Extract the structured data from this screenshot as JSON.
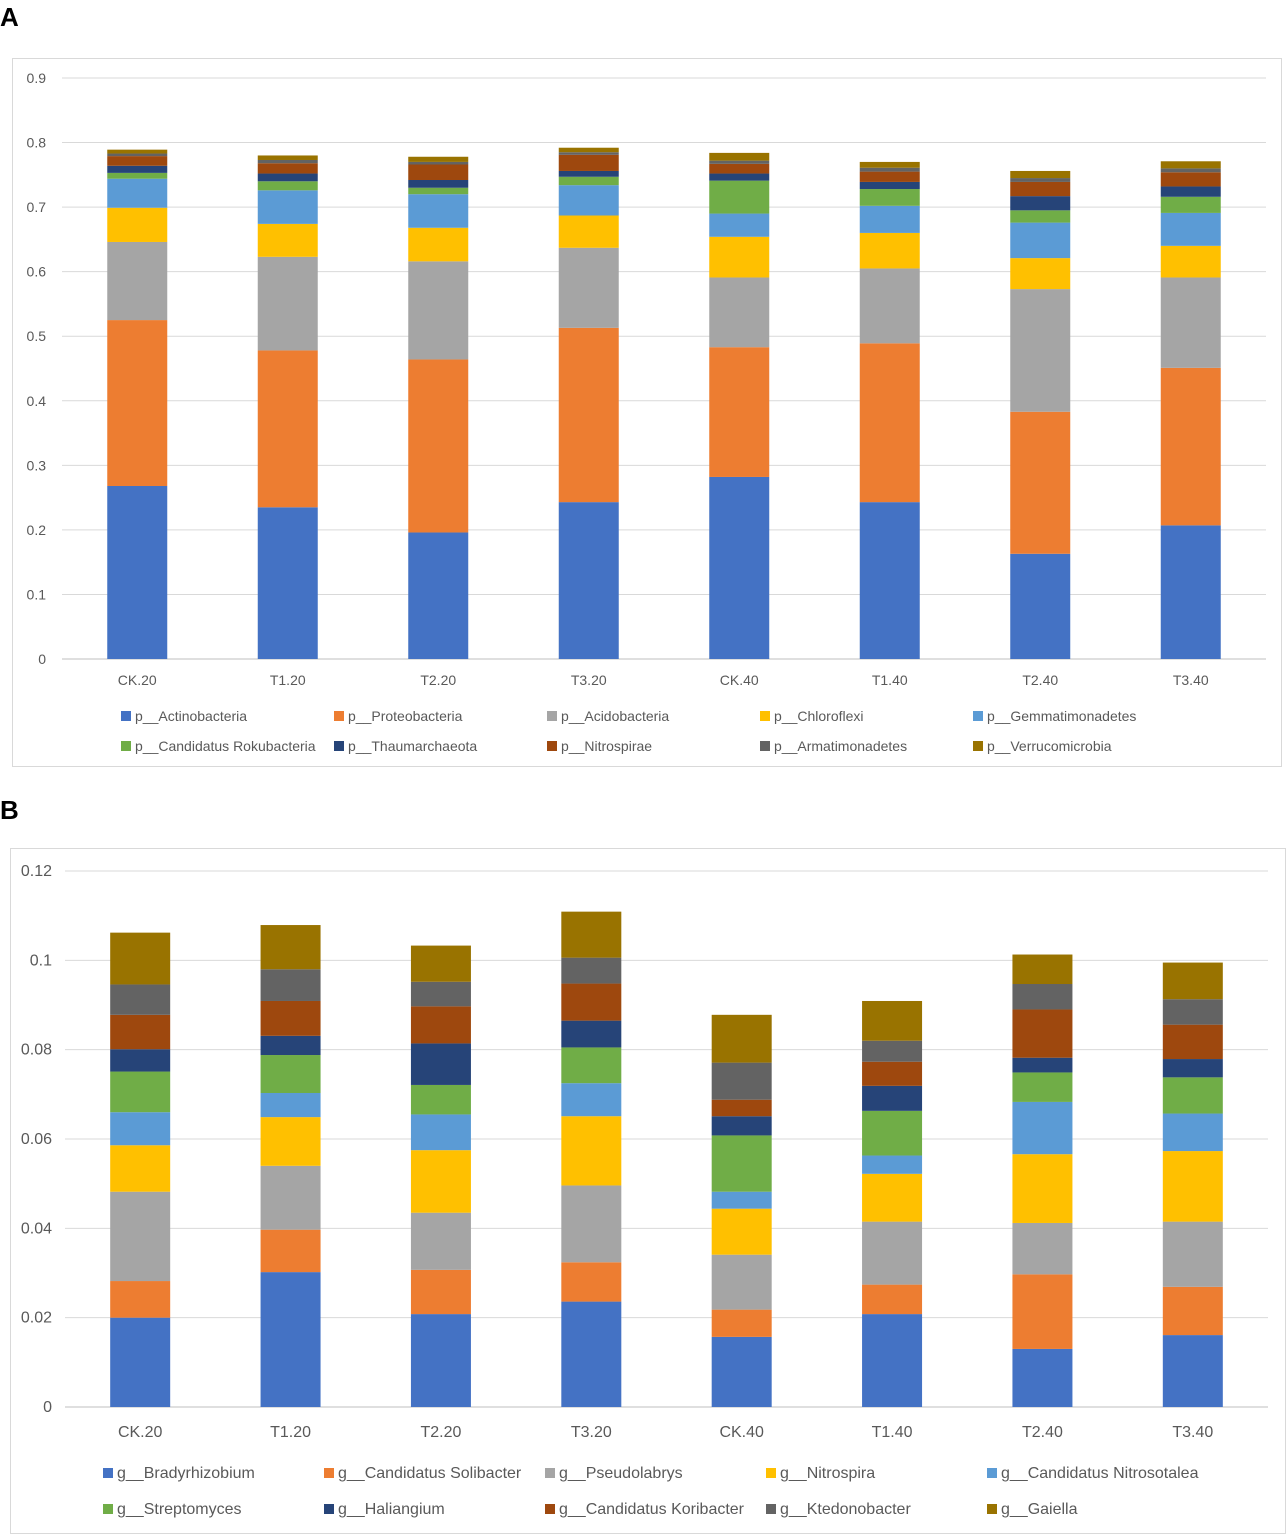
{
  "panels": [
    {
      "label": "A"
    },
    {
      "label": "B"
    }
  ],
  "chart_data": [
    {
      "type": "bar",
      "stacked": true,
      "panel": "A",
      "categories": [
        "CK.20",
        "T1.20",
        "T2.20",
        "T3.20",
        "CK.40",
        "T1.40",
        "T2.40",
        "T3.40"
      ],
      "ylim": [
        0,
        0.9
      ],
      "yticks": [
        0,
        0.1,
        0.2,
        0.3,
        0.4,
        0.5,
        0.6,
        0.7,
        0.8,
        0.9
      ],
      "ytick_labels": [
        "0",
        "0.1",
        "0.2",
        "0.3",
        "0.4",
        "0.5",
        "0.6",
        "0.7",
        "0.8",
        "0.9"
      ],
      "grid": true,
      "legend_position": "bottom",
      "series": [
        {
          "name": "p__Actinobacteria",
          "color": "#4472c4",
          "values": [
            0.268,
            0.235,
            0.196,
            0.243,
            0.282,
            0.243,
            0.163,
            0.207
          ]
        },
        {
          "name": "p__Proteobacteria",
          "color": "#ed7d31",
          "values": [
            0.257,
            0.243,
            0.268,
            0.27,
            0.201,
            0.246,
            0.22,
            0.244
          ]
        },
        {
          "name": "p__Acidobacteria",
          "color": "#a5a5a5",
          "values": [
            0.121,
            0.145,
            0.152,
            0.124,
            0.108,
            0.116,
            0.19,
            0.14
          ]
        },
        {
          "name": "p__Chloroflexi",
          "color": "#ffc000",
          "values": [
            0.053,
            0.051,
            0.052,
            0.05,
            0.063,
            0.055,
            0.048,
            0.049
          ]
        },
        {
          "name": "p__Gemmatimonadetes",
          "color": "#5b9bd5",
          "values": [
            0.045,
            0.052,
            0.052,
            0.047,
            0.036,
            0.042,
            0.055,
            0.051
          ]
        },
        {
          "name": "p__Candidatus Rokubacteria",
          "color": "#70ad47",
          "values": [
            0.009,
            0.014,
            0.01,
            0.013,
            0.051,
            0.026,
            0.019,
            0.025
          ]
        },
        {
          "name": "p__Thaumarchaeota",
          "color": "#264478",
          "values": [
            0.011,
            0.012,
            0.012,
            0.009,
            0.011,
            0.011,
            0.022,
            0.016
          ]
        },
        {
          "name": "p__Nitrospirae",
          "color": "#9e480e",
          "values": [
            0.015,
            0.016,
            0.024,
            0.025,
            0.015,
            0.016,
            0.022,
            0.022
          ]
        },
        {
          "name": "p__Armatimonadetes",
          "color": "#636363",
          "values": [
            0.004,
            0.005,
            0.004,
            0.004,
            0.005,
            0.006,
            0.006,
            0.006
          ]
        },
        {
          "name": "p__Verrucomicrobia",
          "color": "#997300",
          "values": [
            0.006,
            0.007,
            0.008,
            0.007,
            0.012,
            0.009,
            0.011,
            0.011
          ]
        }
      ]
    },
    {
      "type": "bar",
      "stacked": true,
      "panel": "B",
      "categories": [
        "CK.20",
        "T1.20",
        "T2.20",
        "T3.20",
        "CK.40",
        "T1.40",
        "T2.40",
        "T3.40"
      ],
      "ylim": [
        0,
        0.12
      ],
      "yticks": [
        0,
        0.02,
        0.04,
        0.06,
        0.08,
        0.1,
        0.12
      ],
      "ytick_labels": [
        "0",
        "0.02",
        "0.04",
        "0.06",
        "0.08",
        "0.1",
        "0.12"
      ],
      "grid": true,
      "legend_position": "bottom",
      "series": [
        {
          "name": "g__Bradyrhizobium",
          "color": "#4472c4",
          "values": [
            0.02,
            0.0302,
            0.0208,
            0.0236,
            0.0157,
            0.0208,
            0.013,
            0.0161
          ]
        },
        {
          "name": "g__Candidatus Solibacter",
          "color": "#ed7d31",
          "values": [
            0.0082,
            0.0095,
            0.0099,
            0.0088,
            0.0061,
            0.0066,
            0.0167,
            0.0108
          ]
        },
        {
          "name": "g__Pseudolabrys",
          "color": "#a5a5a5",
          "values": [
            0.02,
            0.0143,
            0.0128,
            0.0172,
            0.0123,
            0.0141,
            0.0115,
            0.0146
          ]
        },
        {
          "name": "g__Nitrospira",
          "color": "#ffc000",
          "values": [
            0.0104,
            0.0109,
            0.014,
            0.0155,
            0.0103,
            0.0107,
            0.0154,
            0.0158
          ]
        },
        {
          "name": "g__Candidatus Nitrosotalea",
          "color": "#5b9bd5",
          "values": [
            0.0074,
            0.0054,
            0.008,
            0.0074,
            0.0038,
            0.0041,
            0.0117,
            0.0084
          ]
        },
        {
          "name": "g__Streptomyces",
          "color": "#70ad47",
          "values": [
            0.0091,
            0.0085,
            0.0066,
            0.008,
            0.0126,
            0.01,
            0.0066,
            0.0081
          ]
        },
        {
          "name": "g__Haliangium",
          "color": "#264478",
          "values": [
            0.005,
            0.0043,
            0.0093,
            0.006,
            0.0043,
            0.0056,
            0.0033,
            0.0041
          ]
        },
        {
          "name": "g__Candidatus Koribacter",
          "color": "#9e480e",
          "values": [
            0.0077,
            0.0078,
            0.0083,
            0.0083,
            0.0037,
            0.0054,
            0.0108,
            0.0077
          ]
        },
        {
          "name": "g__Ktedonobacter",
          "color": "#636363",
          "values": [
            0.0068,
            0.0071,
            0.0055,
            0.0058,
            0.0083,
            0.0047,
            0.0057,
            0.0057
          ]
        },
        {
          "name": "g__Gaiella",
          "color": "#997300",
          "values": [
            0.0116,
            0.0099,
            0.0081,
            0.0103,
            0.0107,
            0.0089,
            0.0066,
            0.0082
          ]
        }
      ]
    }
  ]
}
